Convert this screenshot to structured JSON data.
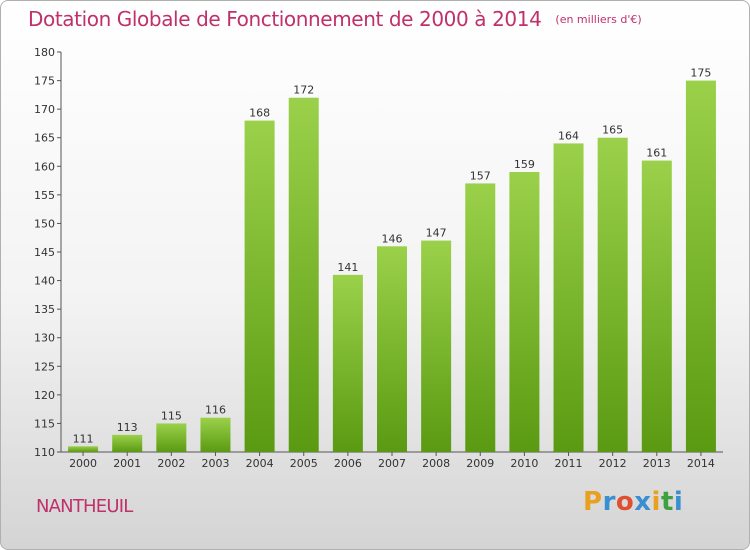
{
  "title": "Dotation Globale de Fonctionnement de 2000 à 2014",
  "unit": "(en milliers d'€)",
  "commune": "NANTHEUIL",
  "logo": {
    "letters": [
      "P",
      "r",
      "o",
      "x",
      "i",
      "t",
      "i"
    ],
    "colors": [
      "#e8a020",
      "#3a8fd0",
      "#e05030",
      "#3a8fd0",
      "#e8a020",
      "#40a040",
      "#3a8fd0"
    ]
  },
  "colors": {
    "bar_top": "#9bd14a",
    "bar_bottom": "#5a9a12",
    "title": "#c0306a"
  },
  "chart_data": {
    "type": "bar",
    "title": "Dotation Globale de Fonctionnement de 2000 à 2014",
    "categories": [
      "2000",
      "2001",
      "2002",
      "2003",
      "2004",
      "2005",
      "2006",
      "2007",
      "2008",
      "2009",
      "2010",
      "2011",
      "2012",
      "2013",
      "2014"
    ],
    "values": [
      111,
      113,
      115,
      116,
      168,
      172,
      141,
      146,
      147,
      157,
      159,
      164,
      165,
      161,
      175
    ],
    "ylim": [
      110,
      180
    ],
    "yticks": [
      110,
      115,
      120,
      125,
      130,
      135,
      140,
      145,
      150,
      155,
      160,
      165,
      170,
      175,
      180
    ],
    "grid": false,
    "xlabel": "",
    "ylabel": ""
  }
}
